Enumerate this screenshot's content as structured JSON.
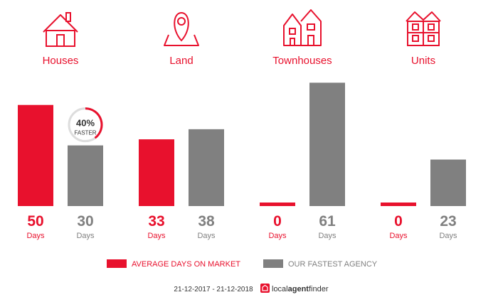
{
  "chart_data": {
    "type": "bar",
    "categories": [
      {
        "label": "Houses",
        "icon": "house-icon"
      },
      {
        "label": "Land",
        "icon": "map-pin-icon"
      },
      {
        "label": "Townhouses",
        "icon": "townhouse-icon"
      },
      {
        "label": "Units",
        "icon": "apartment-icon"
      }
    ],
    "series": [
      {
        "name": "AVERAGE DAYS ON MARKET",
        "color": "#e8112d",
        "values": [
          50,
          33,
          0,
          0
        ]
      },
      {
        "name": "OUR FASTEST AGENCY",
        "color": "#808080",
        "values": [
          30,
          38,
          61,
          23
        ]
      }
    ],
    "value_unit": "Days",
    "ylim": [
      0,
      65
    ],
    "legend_position": "bottom-center",
    "annotation": {
      "category": "Houses",
      "percent_text": "40%",
      "label": "FASTER"
    },
    "colors": {
      "accent": "#e8112d",
      "gray": "#808080",
      "text_dark": "#333333"
    }
  },
  "footer": {
    "date_range": "21-12-2017 - 21-12-2018",
    "brand_local": "local",
    "brand_agent": "agent",
    "brand_finder": "finder"
  }
}
